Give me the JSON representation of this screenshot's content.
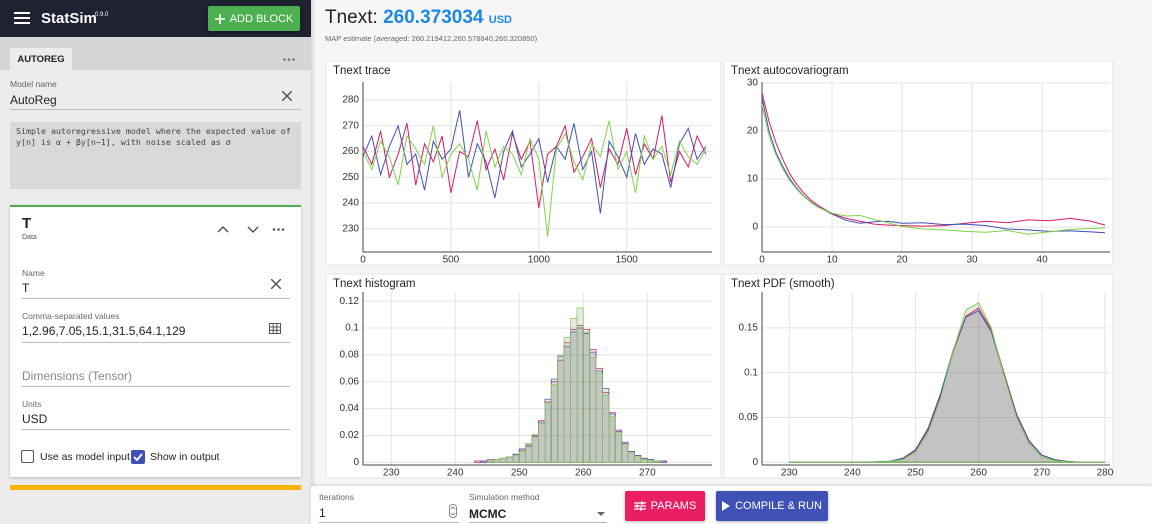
{
  "header": {
    "app_name": "StatSim",
    "version": "0.9.0",
    "add_block": "ADD BLOCK"
  },
  "sidebar": {
    "tab": "AUTOREG",
    "model_name_label": "Model name",
    "model_name": "AutoReg",
    "description": "Simple autoregressive model where the expected value of y[n] is α + βy[n−1], with noise scaled as σ",
    "block": {
      "name": "T",
      "type": "Data",
      "name_label": "Name",
      "name_value": "T",
      "csv_label": "Comma-separated values",
      "csv_value": "1,2.96,7.05,15.1,31.5,64.1,129",
      "dims_placeholder": "Dimensions (Tensor)",
      "units_label": "Units",
      "units_value": "USD",
      "use_input": "Use as model input",
      "show_output": "Show in output"
    }
  },
  "main": {
    "title_prefix": "Tnext:",
    "value": 260.373034,
    "unit": "USD",
    "subtitle": "MAP estimate (averaged: 260.219412,260.578840,260.320850)"
  },
  "footer": {
    "iterations_label": "Iterations",
    "iterations": 1,
    "method_label": "Simulation method",
    "method": "MCMC",
    "params": "PARAMS",
    "run": "COMPILE & RUN"
  },
  "chart_data": [
    {
      "type": "line",
      "title": "Tnext trace",
      "grid": true,
      "x": [
        0,
        50,
        100,
        150,
        200,
        250,
        300,
        350,
        400,
        450,
        500,
        550,
        600,
        650,
        700,
        750,
        800,
        850,
        900,
        950,
        1000,
        1050,
        1100,
        1150,
        1200,
        1250,
        1300,
        1350,
        1400,
        1450,
        1500,
        1550,
        1600,
        1650,
        1700,
        1750,
        1800,
        1850,
        1900,
        1950
      ],
      "xlim": [
        0,
        1985
      ],
      "xticks": [
        0,
        500,
        1000,
        1500
      ],
      "ylim": [
        221,
        287
      ],
      "yticks": [
        230,
        240,
        250,
        260,
        270,
        280
      ],
      "series": [
        {
          "color": "#d81b60",
          "values": [
            262,
            255,
            268,
            250,
            259,
            271,
            247,
            263,
            256,
            266,
            244,
            260,
            258,
            272,
            253,
            261,
            249,
            267,
            257,
            264,
            238,
            259,
            262,
            270,
            252,
            258,
            265,
            246,
            261,
            255,
            269,
            251,
            263,
            257,
            274,
            248,
            260,
            254,
            266,
            259
          ]
        },
        {
          "color": "#3f51b5",
          "values": [
            258,
            266,
            251,
            262,
            270,
            255,
            259,
            245,
            264,
            257,
            261,
            276,
            250,
            263,
            256,
            242,
            260,
            268,
            254,
            259,
            265,
            248,
            262,
            257,
            271,
            253,
            260,
            236,
            264,
            258,
            250,
            267,
            255,
            261,
            259,
            246,
            263,
            269,
            257,
            262
          ]
        },
        {
          "color": "#7ed348",
          "values": [
            260,
            253,
            264,
            258,
            247,
            266,
            261,
            255,
            270,
            250,
            259,
            263,
            257,
            245,
            268,
            254,
            262,
            259,
            251,
            265,
            257,
            227,
            261,
            267,
            256,
            249,
            263,
            258,
            272,
            253,
            260,
            244,
            266,
            257,
            262,
            251,
            264,
            258,
            255,
            261
          ]
        }
      ]
    },
    {
      "type": "line",
      "title": "Tnext autocovariogram",
      "grid": true,
      "x": [
        0,
        1,
        2,
        3,
        4,
        5,
        6,
        7,
        8,
        10,
        12,
        14,
        16,
        18,
        20,
        23,
        26,
        29,
        32,
        35,
        38,
        41,
        44,
        47,
        49
      ],
      "xlim": [
        0,
        49.7
      ],
      "xticks": [
        0,
        10,
        20,
        30,
        40
      ],
      "ylim": [
        -5.2,
        30.2
      ],
      "yticks": [
        0,
        10,
        20,
        30
      ],
      "series": [
        {
          "color": "#d81b60",
          "values": [
            28,
            22,
            17.5,
            14,
            11,
            8.8,
            7,
            5.6,
            4.5,
            2.8,
            1.8,
            1.2,
            0.6,
            0.4,
            0.3,
            0.2,
            0.3,
            0.8,
            1.2,
            0.9,
            1.5,
            1.3,
            1.8,
            1.2,
            0.4
          ]
        },
        {
          "color": "#3f51b5",
          "values": [
            27,
            20,
            15.5,
            12.5,
            10,
            8,
            6.4,
            5.2,
            4.2,
            2.7,
            1.4,
            0.8,
            1.1,
            1.2,
            0.8,
            0.9,
            0.5,
            0.6,
            0.3,
            -0.4,
            -0.6,
            -0.9,
            -0.8,
            -1.0,
            -1.2
          ]
        },
        {
          "color": "#7ed348",
          "values": [
            25.5,
            19,
            15,
            12,
            9.6,
            7.8,
            6.3,
            5.1,
            4.1,
            2.9,
            2.3,
            2.4,
            1.6,
            0.9,
            0.1,
            -0.4,
            -0.6,
            -0.9,
            -1.1,
            -0.7,
            -1.5,
            -1.0,
            -0.5,
            -0.3,
            -0.2
          ]
        }
      ]
    },
    {
      "type": "histogram",
      "title": "Tnext histogram",
      "grid": true,
      "bins": [
        242,
        243,
        244,
        245,
        246,
        247,
        248,
        249,
        250,
        251,
        252,
        253,
        254,
        255,
        256,
        257,
        258,
        259,
        260,
        261,
        262,
        263,
        264,
        265,
        266,
        267,
        268,
        269,
        270,
        271,
        272,
        273,
        274,
        275,
        276,
        277
      ],
      "xlim": [
        225.6,
        280.1
      ],
      "xticks": [
        230,
        240,
        250,
        260,
        270
      ],
      "ylim": [
        -0.002,
        0.1268
      ],
      "yticks": [
        0,
        0.02,
        0.04,
        0.06,
        0.08,
        0.1,
        0.12
      ],
      "series": [
        {
          "color": "#d81b60",
          "values": [
            0,
            0.001,
            0.001,
            0.002,
            0.002,
            0.003,
            0.004,
            0.006,
            0.009,
            0.013,
            0.02,
            0.031,
            0.045,
            0.06,
            0.076,
            0.089,
            0.099,
            0.102,
            0.099,
            0.084,
            0.07,
            0.052,
            0.037,
            0.024,
            0.014,
            0.008,
            0.005,
            0.003,
            0.002,
            0.001,
            0.001,
            0,
            0,
            0,
            0
          ]
        },
        {
          "color": "#3f51b5",
          "values": [
            0,
            0,
            0.001,
            0.001,
            0.002,
            0.003,
            0.004,
            0.006,
            0.01,
            0.012,
            0.019,
            0.03,
            0.047,
            0.062,
            0.079,
            0.086,
            0.097,
            0.1,
            0.096,
            0.082,
            0.068,
            0.055,
            0.036,
            0.023,
            0.015,
            0.008,
            0.005,
            0.003,
            0.002,
            0.001,
            0.001,
            0,
            0,
            0,
            0
          ]
        },
        {
          "color": "#7ed348",
          "values": [
            0,
            0,
            0,
            0.001,
            0.002,
            0.003,
            0.004,
            0.005,
            0.008,
            0.014,
            0.021,
            0.029,
            0.044,
            0.058,
            0.08,
            0.093,
            0.107,
            0.115,
            0.097,
            0.078,
            0.066,
            0.05,
            0.034,
            0.022,
            0.013,
            0.007,
            0.004,
            0.002,
            0.001,
            0.001,
            0,
            0,
            0,
            0,
            0
          ]
        }
      ]
    },
    {
      "type": "area",
      "title": "Tnext PDF (smooth)",
      "grid": true,
      "x": [
        230,
        232,
        234,
        236,
        238,
        240,
        242,
        244,
        246,
        248,
        250,
        252,
        254,
        256,
        258,
        260,
        262,
        264,
        266,
        268,
        270,
        272,
        274,
        276,
        278,
        280
      ],
      "xlim": [
        225.7,
        280.8
      ],
      "xticks": [
        230,
        240,
        250,
        260,
        270,
        280
      ],
      "ylim": [
        -0.003,
        0.19
      ],
      "yticks": [
        0,
        0.05,
        0.1,
        0.15
      ],
      "series": [
        {
          "color": "#d81b60",
          "values": [
            0,
            0,
            0,
            0,
            0,
            0,
            0.0002,
            0.0005,
            0.001,
            0.004,
            0.013,
            0.036,
            0.074,
            0.124,
            0.163,
            0.172,
            0.148,
            0.1,
            0.054,
            0.024,
            0.008,
            0.003,
            0.001,
            0,
            0,
            0
          ]
        },
        {
          "color": "#3f51b5",
          "values": [
            0,
            0,
            0,
            0,
            0,
            0,
            0.0002,
            0.0006,
            0.0012,
            0.0045,
            0.014,
            0.038,
            0.077,
            0.126,
            0.162,
            0.169,
            0.146,
            0.098,
            0.053,
            0.023,
            0.008,
            0.003,
            0.001,
            0,
            0,
            0
          ]
        },
        {
          "color": "#7ed348",
          "values": [
            0,
            0,
            0,
            0,
            0,
            0,
            0.0001,
            0.0004,
            0.0008,
            0.003,
            0.011,
            0.033,
            0.072,
            0.125,
            0.17,
            0.178,
            0.15,
            0.097,
            0.05,
            0.02,
            0.006,
            0.002,
            0.0005,
            0,
            0,
            0
          ]
        }
      ]
    }
  ]
}
